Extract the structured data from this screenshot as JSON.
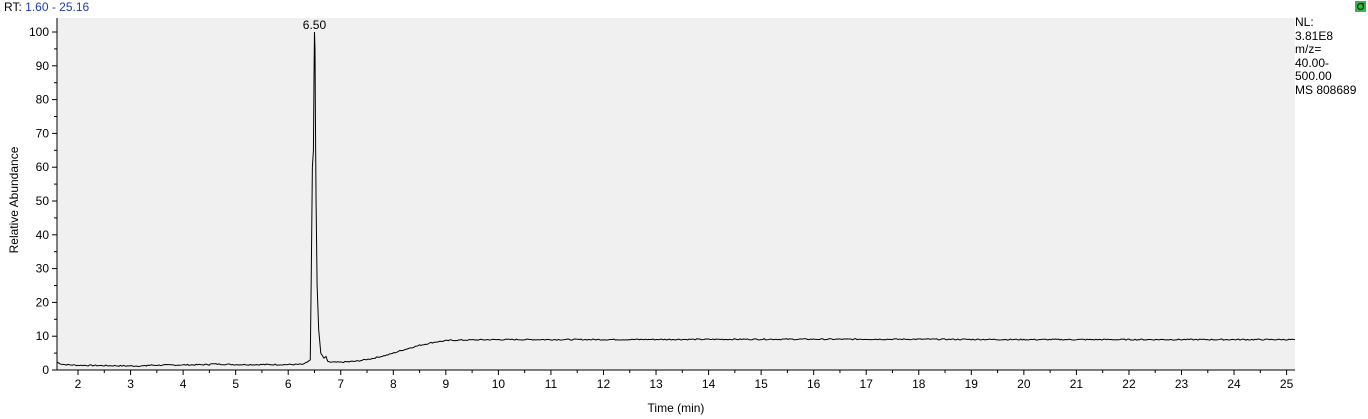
{
  "header": {
    "rt_label": "RT:",
    "rt_range": "1.60 - 25.16"
  },
  "info": {
    "lines": [
      "NL:",
      "3.81E8",
      "m/z=",
      "40.00-",
      "500.00",
      "MS 808689"
    ]
  },
  "icons": {
    "corner": "refresh-icon",
    "corner_color": "#39b54a"
  },
  "chart_data": {
    "type": "line",
    "title": "",
    "xlabel": "Time (min)",
    "ylabel": "Relative Abundance",
    "xlim": [
      1.6,
      25.16
    ],
    "ylim": [
      0,
      100
    ],
    "xticks": [
      2,
      3,
      4,
      5,
      6,
      7,
      8,
      9,
      10,
      11,
      12,
      13,
      14,
      15,
      16,
      17,
      18,
      19,
      20,
      21,
      22,
      23,
      24,
      25
    ],
    "yticks": [
      0,
      10,
      20,
      30,
      40,
      50,
      60,
      70,
      80,
      90,
      100
    ],
    "grid": false,
    "line_color": "#000000",
    "plot_background": "#f0f0f0",
    "annotations": [
      {
        "text": "6.50",
        "x": 6.5,
        "y": 100
      }
    ],
    "series": [
      {
        "x": [
          1.6,
          1.68,
          1.75,
          2.0,
          2.5,
          3.0,
          3.3,
          3.31,
          4.0,
          4.5,
          4.51,
          5.0,
          5.5,
          6.0,
          6.3,
          6.42,
          6.44,
          6.46,
          6.48,
          6.49,
          6.5,
          6.51,
          6.52,
          6.53,
          6.55,
          6.58,
          6.62,
          6.68,
          6.72,
          6.75,
          6.8,
          7.0,
          7.3,
          7.6,
          7.9,
          8.2,
          8.5,
          8.8,
          9.1,
          9.5,
          10.0,
          12.0,
          15.0,
          18.0,
          20.0,
          22.0,
          24.0,
          25.16
        ],
        "y": [
          2.3,
          1.8,
          1.6,
          1.4,
          1.3,
          1.2,
          1.2,
          1.4,
          1.5,
          1.6,
          1.8,
          1.6,
          1.6,
          1.6,
          1.7,
          3.0,
          30.0,
          60.0,
          65.0,
          85.0,
          100.0,
          95.0,
          70.0,
          50.0,
          25.0,
          12.0,
          5.0,
          3.5,
          4.0,
          2.6,
          2.3,
          2.3,
          2.6,
          3.4,
          4.5,
          6.0,
          7.3,
          8.3,
          8.8,
          8.9,
          9.0,
          9.0,
          9.1,
          9.1,
          9.0,
          9.0,
          9.0,
          9.0
        ]
      }
    ]
  }
}
